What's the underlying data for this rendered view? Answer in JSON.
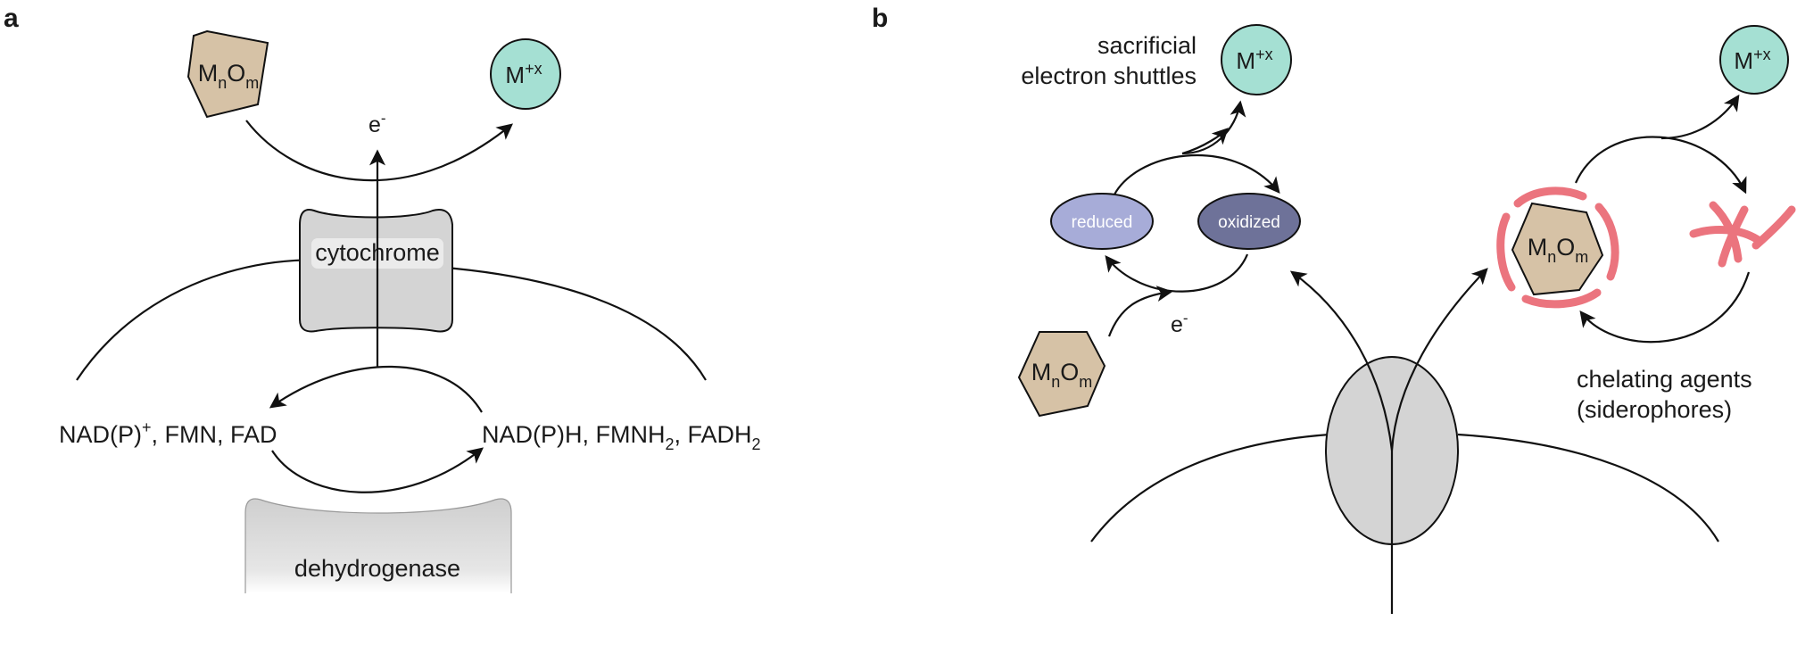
{
  "panel_a": {
    "letter": "a",
    "oxide": {
      "m": "M",
      "n": "n",
      "o": "O",
      "mm": "m"
    },
    "ion": {
      "base": "M",
      "sup": "+x"
    },
    "electron": {
      "base": "e",
      "sup": "-"
    },
    "cytochrome": "cytochrome",
    "oxidized_cofactors": {
      "a": "NAD(P)",
      "sup": "+",
      "b": ",  FMN, FAD"
    },
    "reduced_cofactors": {
      "a": "NAD(P)H,  FMNH",
      "sub1": "2",
      "b": ", FADH",
      "sub2": "2"
    },
    "dehydrogenase": "dehydrogenase"
  },
  "panel_b": {
    "letter": "b",
    "shuttles_label": {
      "line1": "sacrificial",
      "line2": "electron shuttles"
    },
    "ion_left": {
      "base": "M",
      "sup": "+x"
    },
    "ion_right": {
      "base": "M",
      "sup": "+x"
    },
    "reduced": "reduced",
    "oxidized": "oxidized",
    "electron": {
      "base": "e",
      "sup": "-"
    },
    "oxide_left": {
      "m": "M",
      "n": "n",
      "o": "O",
      "mm": "m"
    },
    "oxide_right": {
      "m": "M",
      "n": "n",
      "o": "O",
      "mm": "m"
    },
    "chelating_label": {
      "line1": "chelating agents",
      "line2": "(siderophores)"
    }
  },
  "colors": {
    "oxide_fill": "#d6c2a6",
    "ion_fill": "#a5e0d3",
    "protein_fill": "#d4d4d4",
    "reduced_fill": "#a7acd8",
    "oxidized_fill": "#6e7299",
    "siderophore": "#e85c68"
  }
}
